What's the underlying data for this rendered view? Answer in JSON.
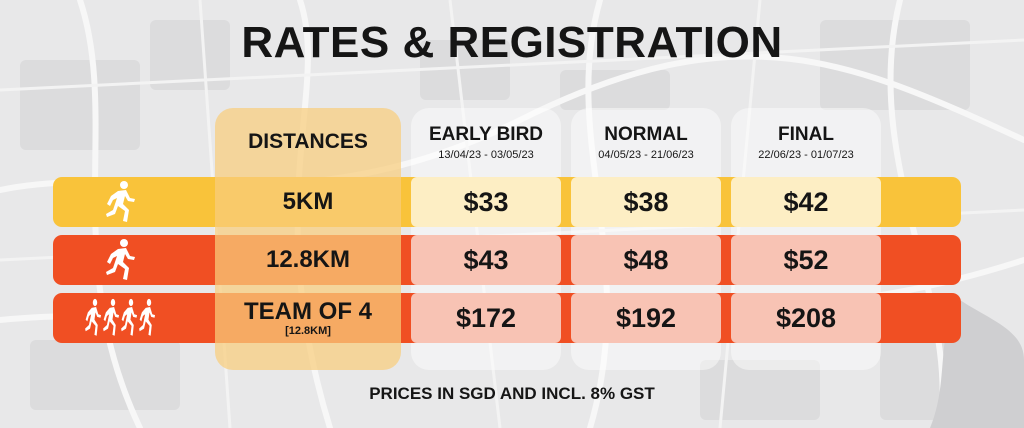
{
  "title": "RATES & REGISTRATION",
  "columns": {
    "distances": "DISTANCES",
    "early_bird": {
      "name": "EARLY BIRD",
      "dates": "13/04/23 - 03/05/23"
    },
    "normal": {
      "name": "NORMAL",
      "dates": "04/05/23 - 21/06/23"
    },
    "final": {
      "name": "FINAL",
      "dates": "22/06/23 - 01/07/23"
    }
  },
  "rows": [
    {
      "icon": "runner-icon",
      "distance": "5KM",
      "sub": "",
      "early_bird": "$33",
      "normal": "$38",
      "final": "$42",
      "row_color": "#f9c33a",
      "cell_color": "#fdeec4"
    },
    {
      "icon": "runner-icon",
      "distance": "12.8KM",
      "sub": "",
      "early_bird": "$43",
      "normal": "$48",
      "final": "$52",
      "row_color": "#f04f23",
      "cell_color": "#f8c3b4"
    },
    {
      "icon": "team-runners-icon",
      "distance": "TEAM OF 4",
      "sub": "[12.8KM]",
      "early_bird": "$172",
      "normal": "$192",
      "final": "$208",
      "row_color": "#f04f23",
      "cell_color": "#f8c3b4"
    }
  ],
  "footer": "PRICES IN SGD AND INCL. 8% GST"
}
